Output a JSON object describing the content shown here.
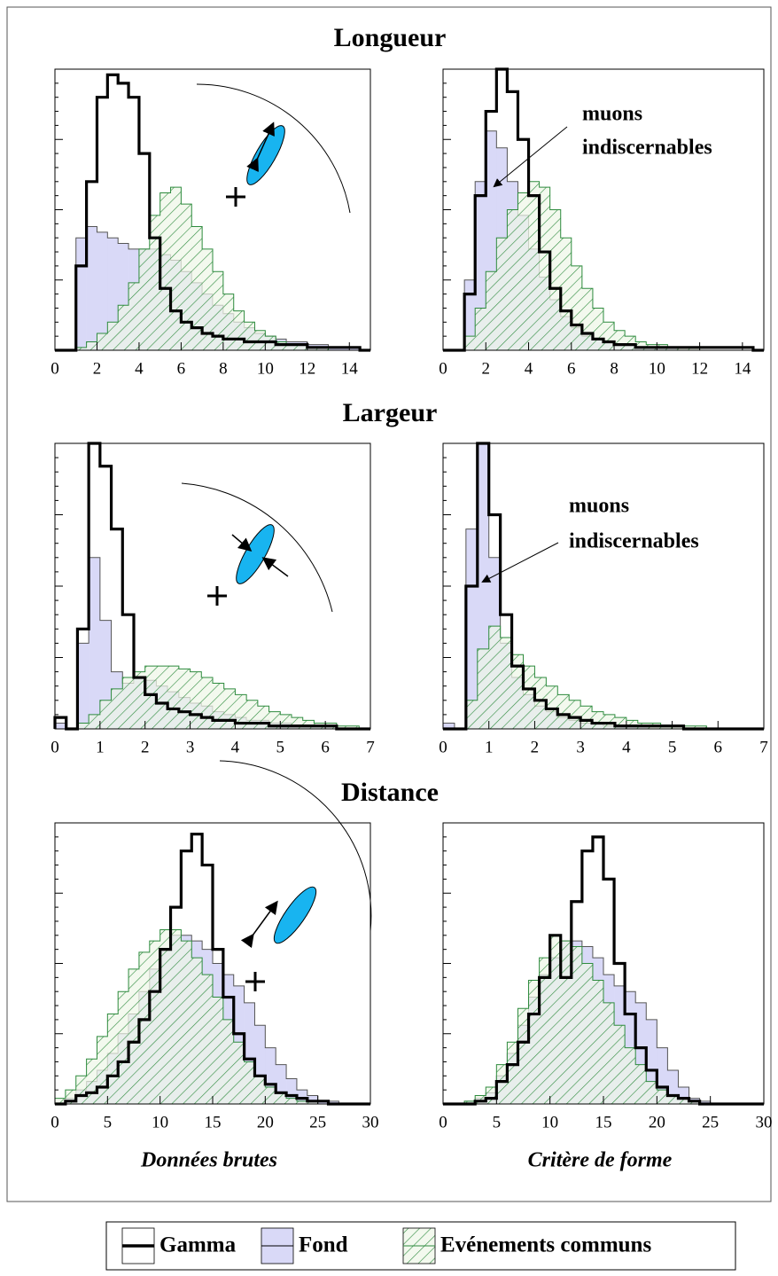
{
  "chart_data": [
    {
      "type": "histogram",
      "title": "Longueur",
      "xlim": [
        0,
        15
      ],
      "ylim": [
        0,
        100
      ],
      "xticks": [
        0,
        2,
        4,
        6,
        8,
        10,
        12,
        14
      ],
      "bins": [
        0,
        0.5,
        1,
        1.5,
        2,
        2.5,
        3,
        3.5,
        4,
        4.5,
        5,
        5.5,
        6,
        6.5,
        7,
        7.5,
        8,
        8.5,
        9,
        9.5,
        10,
        10.5,
        11,
        11.5,
        12,
        12.5,
        13,
        13.5,
        14,
        14.5,
        15
      ],
      "series": [
        {
          "name": "Fond",
          "color": "#d9d9f7",
          "values": [
            0,
            0,
            40,
            44,
            42,
            40,
            38,
            36,
            36,
            36,
            34,
            32,
            28,
            24,
            20,
            16,
            13,
            10,
            8,
            6,
            5,
            4,
            3,
            3,
            2,
            2,
            1,
            1,
            1,
            0
          ]
        },
        {
          "name": "Evénements communs",
          "color": "#2e8b3e",
          "hatch": true,
          "values": [
            0,
            0,
            1,
            3,
            6,
            10,
            16,
            24,
            36,
            48,
            56,
            58,
            52,
            44,
            36,
            28,
            20,
            14,
            10,
            7,
            5,
            3,
            2,
            2,
            1,
            1,
            0,
            0,
            0,
            0
          ]
        },
        {
          "name": "Gamma",
          "color": "#000000",
          "values": [
            0,
            0,
            30,
            60,
            90,
            98,
            95,
            90,
            70,
            40,
            22,
            14,
            10,
            8,
            6,
            5,
            4,
            4,
            3,
            3,
            3,
            2,
            2,
            2,
            1,
            1,
            1,
            1,
            1,
            0
          ]
        }
      ]
    },
    {
      "type": "histogram",
      "xlim": [
        0,
        15
      ],
      "ylim": [
        0,
        100
      ],
      "xticks": [
        0,
        2,
        4,
        6,
        8,
        10,
        12,
        14
      ],
      "annotation": [
        "muons",
        "indiscernables"
      ],
      "bins": [
        0,
        0.5,
        1,
        1.5,
        2,
        2.5,
        3,
        3.5,
        4,
        4.5,
        5,
        5.5,
        6,
        6.5,
        7,
        7.5,
        8,
        8.5,
        9,
        9.5,
        10,
        10.5,
        11,
        11.5,
        12,
        12.5,
        13,
        13.5,
        14,
        14.5,
        15
      ],
      "series": [
        {
          "name": "Fond",
          "color": "#d9d9f7",
          "values": [
            0,
            0,
            25,
            60,
            78,
            72,
            60,
            48,
            36,
            26,
            18,
            12,
            8,
            5,
            4,
            3,
            2,
            2,
            1,
            1,
            1,
            1,
            0,
            0,
            0,
            0,
            0,
            0,
            0,
            0
          ]
        },
        {
          "name": "Evénements communs",
          "color": "#2e8b3e",
          "hatch": true,
          "values": [
            0,
            0,
            5,
            15,
            28,
            40,
            50,
            56,
            60,
            58,
            50,
            40,
            30,
            22,
            15,
            10,
            7,
            5,
            3,
            2,
            2,
            1,
            1,
            1,
            0,
            0,
            0,
            0,
            0,
            0
          ]
        },
        {
          "name": "Gamma",
          "color": "#000000",
          "values": [
            0,
            0,
            20,
            55,
            85,
            100,
            92,
            75,
            55,
            35,
            22,
            14,
            9,
            6,
            4,
            3,
            2,
            2,
            1,
            1,
            1,
            1,
            1,
            1,
            1,
            1,
            1,
            1,
            1,
            0
          ]
        }
      ]
    },
    {
      "type": "histogram",
      "title": "Largeur",
      "xlim": [
        0,
        7
      ],
      "ylim": [
        0,
        100
      ],
      "xticks": [
        0,
        1,
        2,
        3,
        4,
        5,
        6,
        7
      ],
      "bins": [
        0,
        0.25,
        0.5,
        0.75,
        1,
        1.25,
        1.5,
        1.75,
        2,
        2.25,
        2.5,
        2.75,
        3,
        3.25,
        3.5,
        3.75,
        4,
        4.25,
        4.5,
        4.75,
        5,
        5.25,
        5.5,
        5.75,
        6,
        6.25,
        6.5,
        6.75,
        7
      ],
      "series": [
        {
          "name": "Fond",
          "color": "#d9d9f7",
          "values": [
            2,
            0,
            30,
            60,
            38,
            20,
            16,
            18,
            17,
            15,
            13,
            11,
            9,
            8,
            6,
            5,
            4,
            3,
            3,
            2,
            2,
            1,
            1,
            1,
            1,
            0,
            0,
            0
          ]
        },
        {
          "name": "Evénements communs",
          "color": "#2e8b3e",
          "hatch": true,
          "values": [
            0,
            0,
            2,
            5,
            10,
            14,
            18,
            20,
            22,
            22,
            22,
            21,
            20,
            18,
            16,
            14,
            12,
            10,
            8,
            6,
            5,
            4,
            3,
            2,
            2,
            1,
            1,
            0
          ]
        },
        {
          "name": "Gamma",
          "color": "#000000",
          "values": [
            4,
            0,
            35,
            100,
            92,
            70,
            40,
            18,
            12,
            9,
            7,
            6,
            5,
            4,
            3,
            3,
            2,
            2,
            2,
            1,
            1,
            1,
            1,
            1,
            1,
            0,
            0,
            0
          ]
        }
      ]
    },
    {
      "type": "histogram",
      "xlim": [
        0,
        7
      ],
      "ylim": [
        0,
        100
      ],
      "xticks": [
        0,
        1,
        2,
        3,
        4,
        5,
        6,
        7
      ],
      "annotation": [
        "muons",
        "indiscernables"
      ],
      "bins": [
        0,
        0.25,
        0.5,
        0.75,
        1,
        1.25,
        1.5,
        1.75,
        2,
        2.25,
        2.5,
        2.75,
        3,
        3.25,
        3.5,
        3.75,
        4,
        4.25,
        4.5,
        4.75,
        5,
        5.25,
        5.5,
        5.75,
        6,
        6.25,
        6.5,
        6.75,
        7
      ],
      "series": [
        {
          "name": "Fond",
          "color": "#d9d9f7",
          "values": [
            2,
            0,
            70,
            100,
            60,
            30,
            18,
            12,
            8,
            6,
            4,
            3,
            2,
            2,
            1,
            1,
            1,
            1,
            0,
            0,
            0,
            0,
            0,
            0,
            0,
            0,
            0,
            0
          ]
        },
        {
          "name": "Evénements communs",
          "color": "#2e8b3e",
          "hatch": true,
          "values": [
            0,
            0,
            10,
            28,
            36,
            32,
            26,
            22,
            18,
            15,
            12,
            10,
            8,
            6,
            5,
            4,
            3,
            2,
            2,
            1,
            1,
            1,
            1,
            0,
            0,
            0,
            0,
            0
          ]
        },
        {
          "name": "Gamma",
          "color": "#000000",
          "values": [
            0,
            0,
            50,
            100,
            75,
            40,
            22,
            14,
            10,
            7,
            5,
            4,
            3,
            2,
            2,
            1,
            1,
            1,
            1,
            1,
            1,
            0,
            0,
            0,
            0,
            0,
            0,
            0
          ]
        }
      ]
    },
    {
      "type": "histogram",
      "title": "Distance",
      "xlabel": "Données brutes",
      "xlim": [
        0,
        30
      ],
      "ylim": [
        0,
        100
      ],
      "xticks": [
        0,
        5,
        10,
        15,
        20,
        25,
        30
      ],
      "bins": [
        0,
        1,
        2,
        3,
        4,
        5,
        6,
        7,
        8,
        9,
        10,
        11,
        12,
        13,
        14,
        15,
        16,
        17,
        18,
        19,
        20,
        21,
        22,
        23,
        24,
        25,
        26,
        27,
        28,
        29,
        30
      ],
      "series": [
        {
          "name": "Fond",
          "color": "#d9d9f7",
          "values": [
            0,
            2,
            5,
            8,
            12,
            18,
            25,
            32,
            40,
            48,
            55,
            60,
            60,
            58,
            55,
            50,
            46,
            42,
            36,
            28,
            20,
            14,
            9,
            5,
            3,
            1,
            1,
            0,
            0,
            0
          ]
        },
        {
          "name": "Evénements communs",
          "color": "#2e8b3e",
          "hatch": true,
          "values": [
            2,
            5,
            10,
            16,
            24,
            32,
            40,
            48,
            54,
            58,
            62,
            62,
            58,
            52,
            46,
            38,
            30,
            22,
            15,
            10,
            6,
            4,
            2,
            1,
            1,
            0,
            0,
            0,
            0,
            0
          ]
        },
        {
          "name": "Gamma",
          "color": "#000000",
          "values": [
            0,
            1,
            3,
            4,
            6,
            10,
            15,
            22,
            30,
            40,
            55,
            70,
            90,
            96,
            85,
            55,
            38,
            25,
            16,
            10,
            7,
            4,
            3,
            2,
            1,
            1,
            0,
            0,
            0,
            0
          ]
        }
      ]
    },
    {
      "type": "histogram",
      "xlabel": "Critère de forme",
      "xlim": [
        0,
        30
      ],
      "ylim": [
        0,
        100
      ],
      "xticks": [
        0,
        5,
        10,
        15,
        20,
        25,
        30
      ],
      "bins": [
        0,
        1,
        2,
        3,
        4,
        5,
        6,
        7,
        8,
        9,
        10,
        11,
        12,
        13,
        14,
        15,
        16,
        17,
        18,
        19,
        20,
        21,
        22,
        23,
        24,
        25,
        26,
        27,
        28,
        29,
        30
      ],
      "series": [
        {
          "name": "Fond",
          "color": "#d9d9f7",
          "values": [
            0,
            0,
            1,
            2,
            4,
            10,
            18,
            28,
            38,
            46,
            52,
            58,
            58,
            56,
            52,
            46,
            42,
            40,
            36,
            30,
            20,
            12,
            6,
            2,
            1,
            0,
            0,
            0,
            0,
            0
          ]
        },
        {
          "name": "Evénements communs",
          "color": "#2e8b3e",
          "hatch": true,
          "values": [
            0,
            0,
            1,
            3,
            6,
            14,
            22,
            34,
            44,
            52,
            60,
            58,
            56,
            50,
            44,
            36,
            28,
            20,
            14,
            8,
            5,
            3,
            2,
            1,
            0,
            0,
            0,
            0,
            0,
            0
          ]
        },
        {
          "name": "Gamma",
          "color": "#000000",
          "values": [
            0,
            0,
            0,
            1,
            2,
            8,
            14,
            22,
            32,
            45,
            60,
            45,
            72,
            90,
            95,
            80,
            50,
            32,
            20,
            12,
            6,
            3,
            2,
            1,
            0,
            0,
            0,
            0,
            0,
            0
          ]
        }
      ]
    }
  ]
}
